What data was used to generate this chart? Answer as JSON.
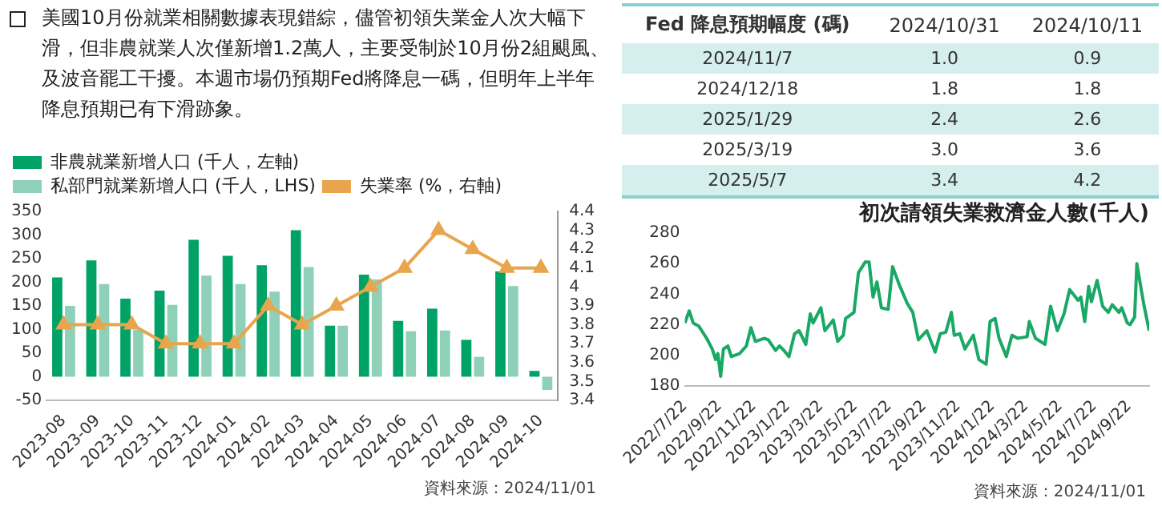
{
  "chart_data": [
    {
      "type": "other",
      "annotations": [
        "美國10月份就業相關數據表現錯綜，儘管初領失業金人次大幅下滑，但非農就業人次僅新增1.2萬人，主要受制於10月份2組颶風、及波音罷工干擾。本週市場仍預期Fed將降息一碼，但明年上半年降息預期已有下滑跡象。"
      ]
    },
    {
      "type": "bar",
      "categories": [
        "2023-08",
        "2023-09",
        "2023-10",
        "2023-11",
        "2023-12",
        "2024-01",
        "2024-02",
        "2024-03",
        "2024-04",
        "2024-05",
        "2024-06",
        "2024-07",
        "2024-08",
        "2024-09",
        "2024-10"
      ],
      "series": [
        {
          "name": "非農就業新增人口 (千人，左軸)",
          "color": "#00a266",
          "values": [
            210,
            246,
            165,
            182,
            290,
            256,
            236,
            310,
            108,
            216,
            118,
            144,
            78,
            223,
            12
          ]
        },
        {
          "name": "私部門就業新增人口 (千人，LHS)",
          "color": "#8fd1b8",
          "values": [
            150,
            196,
            99,
            152,
            214,
            196,
            180,
            232,
            108,
            206,
            96,
            98,
            42,
            192,
            -28
          ]
        },
        {
          "name": "失業率 (%，右軸)",
          "type": "line",
          "axis": "y2",
          "color": "#e8a54b",
          "values": [
            3.8,
            3.8,
            3.8,
            3.7,
            3.7,
            3.7,
            3.9,
            3.8,
            3.9,
            4.0,
            4.1,
            4.3,
            4.2,
            4.1,
            4.1
          ]
        }
      ],
      "ylim": [
        -50,
        350
      ],
      "yticks": [
        -50,
        0,
        50,
        100,
        150,
        200,
        250,
        300,
        350
      ],
      "y2lim": [
        3.4,
        4.4
      ],
      "y2ticks": [
        3.4,
        3.5,
        3.6,
        3.7,
        3.8,
        3.9,
        4,
        4.1,
        4.2,
        4.3,
        4.4
      ],
      "marker": "triangle",
      "legend": "top left",
      "grid": false,
      "annotations": [
        "資料來源：2024/11/01"
      ]
    },
    {
      "type": "other",
      "title": "Fed 降息預期幅度 (碼)",
      "categories": [
        "2024/10/31",
        "2024/10/11"
      ],
      "y_categories": [
        "2024/11/7",
        "2024/12/18",
        "2025/1/29",
        "2025/3/19",
        "2025/5/7"
      ],
      "cell_labels": [
        [
          "1.0",
          "0.9"
        ],
        [
          "1.8",
          "1.8"
        ],
        [
          "2.4",
          "2.6"
        ],
        [
          "3.0",
          "3.6"
        ],
        [
          "3.4",
          "4.2"
        ]
      ]
    },
    {
      "type": "line",
      "title": "初次請領失業救濟金人數(千人)",
      "color": "#1aa866",
      "x": [
        "2022-07-22",
        "2022-07-30",
        "2022-08-06",
        "2022-08-16",
        "2022-08-30",
        "2022-09-09",
        "2022-09-15",
        "2022-09-19",
        "2022-09-24",
        "2022-09-29",
        "2022-10-07",
        "2022-10-13",
        "2022-10-28",
        "2022-11-09",
        "2022-11-17",
        "2022-11-25",
        "2022-12-11",
        "2022-12-18",
        "2022-12-31",
        "2023-01-07",
        "2023-01-15",
        "2023-01-24",
        "2023-02-03",
        "2023-02-11",
        "2023-02-23",
        "2023-03-03",
        "2023-03-08",
        "2023-03-22",
        "2023-03-29",
        "2023-04-13",
        "2023-04-21",
        "2023-05-01",
        "2023-05-05",
        "2023-05-20",
        "2023-05-28",
        "2023-06-09",
        "2023-06-16",
        "2023-06-23",
        "2023-06-30",
        "2023-07-08",
        "2023-07-20",
        "2023-07-28",
        "2023-08-09",
        "2023-08-23",
        "2023-09-02",
        "2023-09-12",
        "2023-09-27",
        "2023-10-12",
        "2023-10-21",
        "2023-10-31",
        "2023-11-10",
        "2023-11-15",
        "2023-11-25",
        "2023-12-04",
        "2023-12-19",
        "2023-12-29",
        "2024-01-11",
        "2024-01-18",
        "2024-01-27",
        "2024-02-03",
        "2024-02-16",
        "2024-02-26",
        "2024-03-07",
        "2024-03-24",
        "2024-03-28",
        "2024-04-08",
        "2024-04-25",
        "2024-05-05",
        "2024-05-17",
        "2024-05-29",
        "2024-06-08",
        "2024-06-23",
        "2024-06-28",
        "2024-07-05",
        "2024-07-12",
        "2024-07-17",
        "2024-07-27",
        "2024-08-06",
        "2024-08-16",
        "2024-08-23",
        "2024-09-04",
        "2024-09-09",
        "2024-09-19",
        "2024-09-24",
        "2024-10-02",
        "2024-10-06",
        "2024-10-18",
        "2024-10-28"
      ],
      "values": [
        221,
        229,
        221,
        219,
        211,
        204,
        197,
        201,
        186,
        204,
        206,
        199,
        201,
        206,
        218,
        209,
        211,
        210,
        203,
        206,
        203,
        199,
        214,
        216,
        207,
        227,
        221,
        231,
        216,
        223,
        209,
        213,
        224,
        228,
        254,
        261,
        261,
        238,
        248,
        231,
        230,
        258,
        246,
        234,
        228,
        210,
        216,
        202,
        214,
        215,
        228,
        213,
        214,
        204,
        213,
        197,
        194,
        222,
        224,
        211,
        199,
        213,
        211,
        212,
        222,
        211,
        207,
        232,
        216,
        227,
        243,
        236,
        238,
        222,
        245,
        235,
        249,
        232,
        228,
        233,
        228,
        231,
        221,
        220,
        225,
        260,
        234,
        216
      ],
      "xlim": [
        "2022-07-22",
        "2024-10-28"
      ],
      "xticks": [
        {
          "value": "2022-07-22",
          "label": "2022/7/22"
        },
        {
          "value": "2022-09-22",
          "label": "2022/9/22"
        },
        {
          "value": "2022-11-22",
          "label": "2022/11/22"
        },
        {
          "value": "2023-01-22",
          "label": "2023/1/22"
        },
        {
          "value": "2023-03-22",
          "label": "2023/3/22"
        },
        {
          "value": "2023-05-22",
          "label": "2023/5/22"
        },
        {
          "value": "2023-07-22",
          "label": "2023/7/22"
        },
        {
          "value": "2023-09-22",
          "label": "2023/9/22"
        },
        {
          "value": "2023-11-22",
          "label": "2023/11/22"
        },
        {
          "value": "2024-01-22",
          "label": "2024/1/22"
        },
        {
          "value": "2024-03-22",
          "label": "2024/3/22"
        },
        {
          "value": "2024-05-22",
          "label": "2024/5/22"
        },
        {
          "value": "2024-07-22",
          "label": "2024/7/22"
        },
        {
          "value": "2024-09-22",
          "label": "2024/9/22"
        }
      ],
      "ylim": [
        180,
        280
      ],
      "yticks": [
        180,
        200,
        220,
        240,
        260,
        280
      ],
      "grid": false,
      "annotations": [
        "資料來源：2024/11/01"
      ]
    }
  ]
}
